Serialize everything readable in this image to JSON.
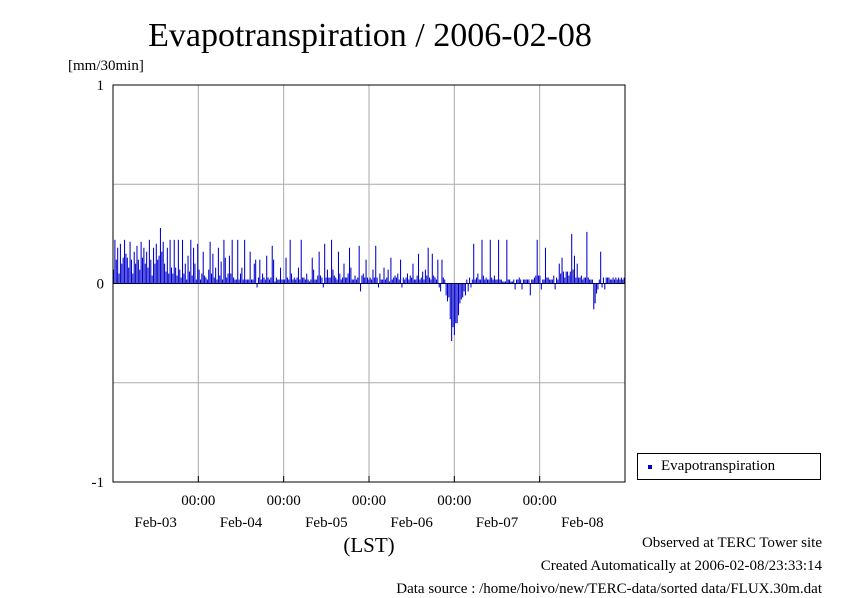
{
  "chart_data": {
    "type": "bar",
    "title": "Evapotranspiration / 2006-02-08",
    "ylabel": "[mm/30min]",
    "xlabel": "(LST)",
    "ylim": [
      -1,
      1
    ],
    "yticks": [
      "1",
      "0",
      "-1"
    ],
    "xticks_time": [
      "00:00",
      "00:00",
      "00:00",
      "00:00",
      "00:00"
    ],
    "xticks_date": [
      "Feb-03",
      "Feb-04",
      "Feb-05",
      "Feb-06",
      "Feb-07",
      "Feb-08"
    ],
    "xrange_hours": [
      0,
      144
    ],
    "grid": true,
    "legend_position": "right",
    "color": "#0000cc",
    "series": [
      {
        "name": "Evapotranspiration",
        "values": [
          0.07,
          0.22,
          0.12,
          0.18,
          0.05,
          0.2,
          0.1,
          0.13,
          0.22,
          0.15,
          0.13,
          0.08,
          0.21,
          0.12,
          0.05,
          0.16,
          0.1,
          0.19,
          0.12,
          0.07,
          0.21,
          0.13,
          0.18,
          0.1,
          0.16,
          0.08,
          0.22,
          0.12,
          0.04,
          0.18,
          0.1,
          0.2,
          0.12,
          0.14,
          0.28,
          0.16,
          0.21,
          0.1,
          0.06,
          0.18,
          0.05,
          0.22,
          0.08,
          0.05,
          0.22,
          0.08,
          0.04,
          0.22,
          0.07,
          0.03,
          0.22,
          0.05,
          0.1,
          0.02,
          0.14,
          0.06,
          0.22,
          0.04,
          0.18,
          0.1,
          0.02,
          0.2,
          0.07,
          0.02,
          0.05,
          0.16,
          0.04,
          0.03,
          0.02,
          0.07,
          0.21,
          0.05,
          0.15,
          0.03,
          0.08,
          0.02,
          0.18,
          0.04,
          0.11,
          0.02,
          0.22,
          0.13,
          0.03,
          0.05,
          0.14,
          0.05,
          0.22,
          0.03,
          0.02,
          0.02,
          0.22,
          0.02,
          0.05,
          0.08,
          0.02,
          0.22,
          0.02,
          0.02,
          0.02,
          0.16,
          0.02,
          0.02,
          0.1,
          0.12,
          -0.02,
          0.03,
          0.12,
          0.02,
          0.05,
          0.03,
          0.02,
          0.14,
          0.03,
          0.02,
          0.03,
          0.19,
          0.12,
          0.01,
          0.03,
          0.02,
          0.02,
          0.08,
          0.02,
          0.02,
          0.02,
          0.13,
          0.03,
          0.02,
          0.22,
          0.05,
          0.02,
          0.03,
          0.02,
          0.03,
          0.08,
          0.02,
          0.22,
          0.03,
          0.03,
          0.02,
          0.05,
          0.02,
          0.01,
          0.02,
          0.13,
          0.07,
          0.02,
          0.02,
          0.04,
          0.16,
          0.04,
          0.03,
          -0.02,
          0.2,
          0.03,
          0.07,
          0.03,
          0.03,
          0.22,
          0.07,
          0.04,
          0.03,
          0.02,
          0.16,
          0.05,
          0.02,
          0.03,
          0.1,
          0.03,
          0.03,
          0.05,
          0.18,
          0.08,
          0.02,
          0.02,
          0.04,
          0.02,
          0.03,
          0.19,
          -0.04,
          0.04,
          0.05,
          0.03,
          0.12,
          0.03,
          0.02,
          0.03,
          0.02,
          0.07,
          0.03,
          0.19,
          0.03,
          -0.02,
          0.05,
          0.02,
          0.02,
          0.08,
          0.02,
          0.03,
          0.07,
          0.01,
          0.13,
          0.02,
          0.03,
          0.04,
          0.03,
          0.05,
          0.02,
          0.12,
          -0.02,
          0.03,
          0.02,
          0.03,
          0.05,
          0.02,
          0.04,
          0.03,
          0.1,
          0.02,
          0.02,
          0.04,
          0.15,
          0.02,
          0.03,
          0.06,
          0.02,
          0.07,
          0.04,
          0.18,
          0.03,
          0.02,
          0.15,
          0.04,
          0.03,
          0.02,
          0.12,
          -0.02,
          -0.04,
          0.12,
          0.03,
          0.02,
          -0.06,
          -0.09,
          -0.07,
          -0.18,
          -0.29,
          -0.22,
          -0.26,
          -0.2,
          -0.2,
          -0.16,
          -0.1,
          -0.08,
          -0.07,
          -0.04,
          -0.06,
          0.02,
          -0.04,
          0.03,
          -0.02,
          0.02,
          0.2,
          0.02,
          0.03,
          0.05,
          0.02,
          0.02,
          0.22,
          0.04,
          0.02,
          0.03,
          0.02,
          0.02,
          0.22,
          0.03,
          0.02,
          0.04,
          0.02,
          0.02,
          0.22,
          0.02,
          0.02,
          0.01,
          0.01,
          0.01,
          0.22,
          0.02,
          0.02,
          0.01,
          0.01,
          0.02,
          -0.03,
          0.02,
          0.02,
          0.03,
          0.02,
          -0.03,
          0.02,
          0.02,
          0.02,
          0.02,
          0.02,
          -0.06,
          0.02,
          0.02,
          0.03,
          0.04,
          0.22,
          0.04,
          0.04,
          -0.03,
          0.02,
          0.02,
          0.18,
          0.03,
          0.03,
          0.02,
          0.02,
          0.02,
          0.04,
          -0.03,
          0.03,
          0.02,
          0.1,
          0.05,
          0.13,
          0.06,
          0.03,
          0.06,
          0.06,
          0.04,
          0.06,
          0.25,
          0.07,
          0.14,
          0.03,
          0.1,
          0.03,
          0.03,
          0.04,
          0.02,
          0.03,
          0.03,
          0.26,
          0.03,
          0.02,
          0.02,
          0.02,
          -0.13,
          -0.1,
          -0.05,
          -0.03,
          0.02,
          0.16,
          -0.02,
          0.03,
          -0.03,
          0.03,
          0.03,
          0.03,
          0.02,
          0.02,
          0.03,
          0.02,
          0.03,
          0.02,
          0.03,
          0.02,
          0.03,
          0.02,
          0.03
        ]
      }
    ]
  },
  "legend": {
    "label": "Evapotranspiration"
  },
  "footer": {
    "site": "Observed at TERC Tower site",
    "created": "Created Automatically at 2006-02-08/23:33:14",
    "source": "Data source : /home/hoivo/new/TERC-data/sorted data/FLUX.30m.dat"
  }
}
